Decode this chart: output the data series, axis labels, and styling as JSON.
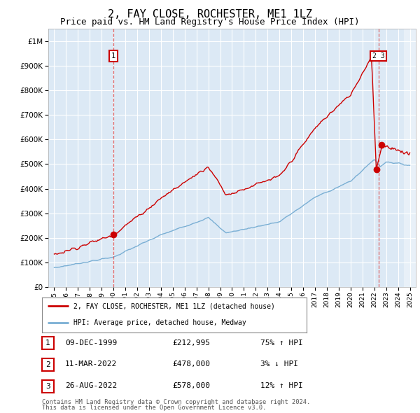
{
  "title": "2, FAY CLOSE, ROCHESTER, ME1 1LZ",
  "subtitle": "Price paid vs. HM Land Registry's House Price Index (HPI)",
  "title_fontsize": 11,
  "subtitle_fontsize": 9,
  "plot_bg_color": "#dce9f5",
  "grid_color": "#ffffff",
  "red_line_color": "#cc0000",
  "blue_line_color": "#7aafd4",
  "sale1_year": 2000.0,
  "sale1_price": 212995,
  "sale2_year": 2022.17,
  "sale2_price": 478000,
  "sale3_year": 2022.63,
  "sale3_price": 578000,
  "ylim_max": 1050000,
  "xlim_start": 1994.5,
  "xlim_end": 2025.5,
  "footer_line1": "Contains HM Land Registry data © Crown copyright and database right 2024.",
  "footer_line2": "This data is licensed under the Open Government Licence v3.0.",
  "legend_label1": "2, FAY CLOSE, ROCHESTER, ME1 1LZ (detached house)",
  "legend_label2": "HPI: Average price, detached house, Medway",
  "table_rows": [
    [
      "1",
      "09-DEC-1999",
      "£212,995",
      "75% ↑ HPI"
    ],
    [
      "2",
      "11-MAR-2022",
      "£478,000",
      "3% ↓ HPI"
    ],
    [
      "3",
      "26-AUG-2022",
      "£578,000",
      "12% ↑ HPI"
    ]
  ]
}
